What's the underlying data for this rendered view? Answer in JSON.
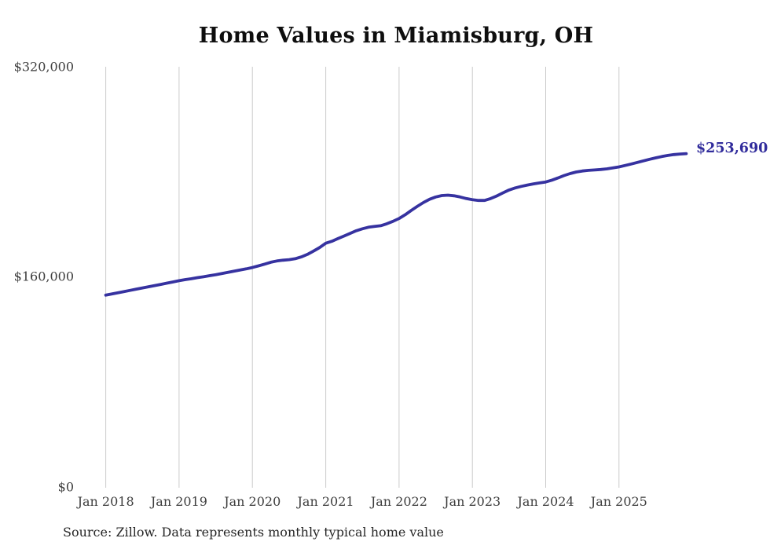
{
  "chart_data": {
    "type": "line",
    "title": "Home Values in Miamisburg, OH",
    "source_note": "Source: Zillow. Data represents monthly typical home value",
    "series_name": "Monthly typical home value",
    "unit": "USD",
    "frequency": "monthly",
    "start_month": "2018-01",
    "end_month": "2025-12",
    "values": [
      146000,
      146900,
      147800,
      148700,
      149600,
      150600,
      151500,
      152400,
      153300,
      154200,
      155100,
      156000,
      157000,
      157800,
      158500,
      159300,
      160000,
      160800,
      161500,
      162400,
      163300,
      164200,
      165100,
      166000,
      167000,
      168300,
      169600,
      171000,
      172000,
      172600,
      173000,
      173700,
      175100,
      177000,
      179500,
      182200,
      185500,
      187000,
      189000,
      191000,
      193000,
      195000,
      196500,
      197700,
      198300,
      198800,
      200300,
      202200,
      204300,
      207200,
      210500,
      213600,
      216500,
      219000,
      220700,
      221800,
      222100,
      221600,
      220700,
      219500,
      218600,
      218100,
      218100,
      219500,
      221500,
      223800,
      226000,
      227600,
      228800,
      229800,
      230700,
      231400,
      232100,
      233500,
      235200,
      237000,
      238500,
      239700,
      240500,
      241000,
      241300,
      241600,
      242100,
      242800,
      243600,
      244700,
      245800,
      247000,
      248200,
      249400,
      250500,
      251500,
      252300,
      253000,
      253400,
      253690
    ],
    "x_ticks": [
      "Jan 2018",
      "Jan 2019",
      "Jan 2020",
      "Jan 2021",
      "Jan 2022",
      "Jan 2023",
      "Jan 2024",
      "Jan 2025"
    ],
    "y_ticks": [
      "$320,000",
      "$160,000",
      "$0"
    ],
    "ylim": [
      0,
      320000
    ],
    "end_value": 253690,
    "end_label": "$253,690",
    "grid": "vertical-only",
    "legend": "none",
    "colors": {
      "line": "#3632a0",
      "end_label": "#312c9c",
      "grid": "#cbcbcb",
      "title": "#0e0e0e",
      "axis_text": "#3d3d3d",
      "source_text": "#262626"
    }
  }
}
